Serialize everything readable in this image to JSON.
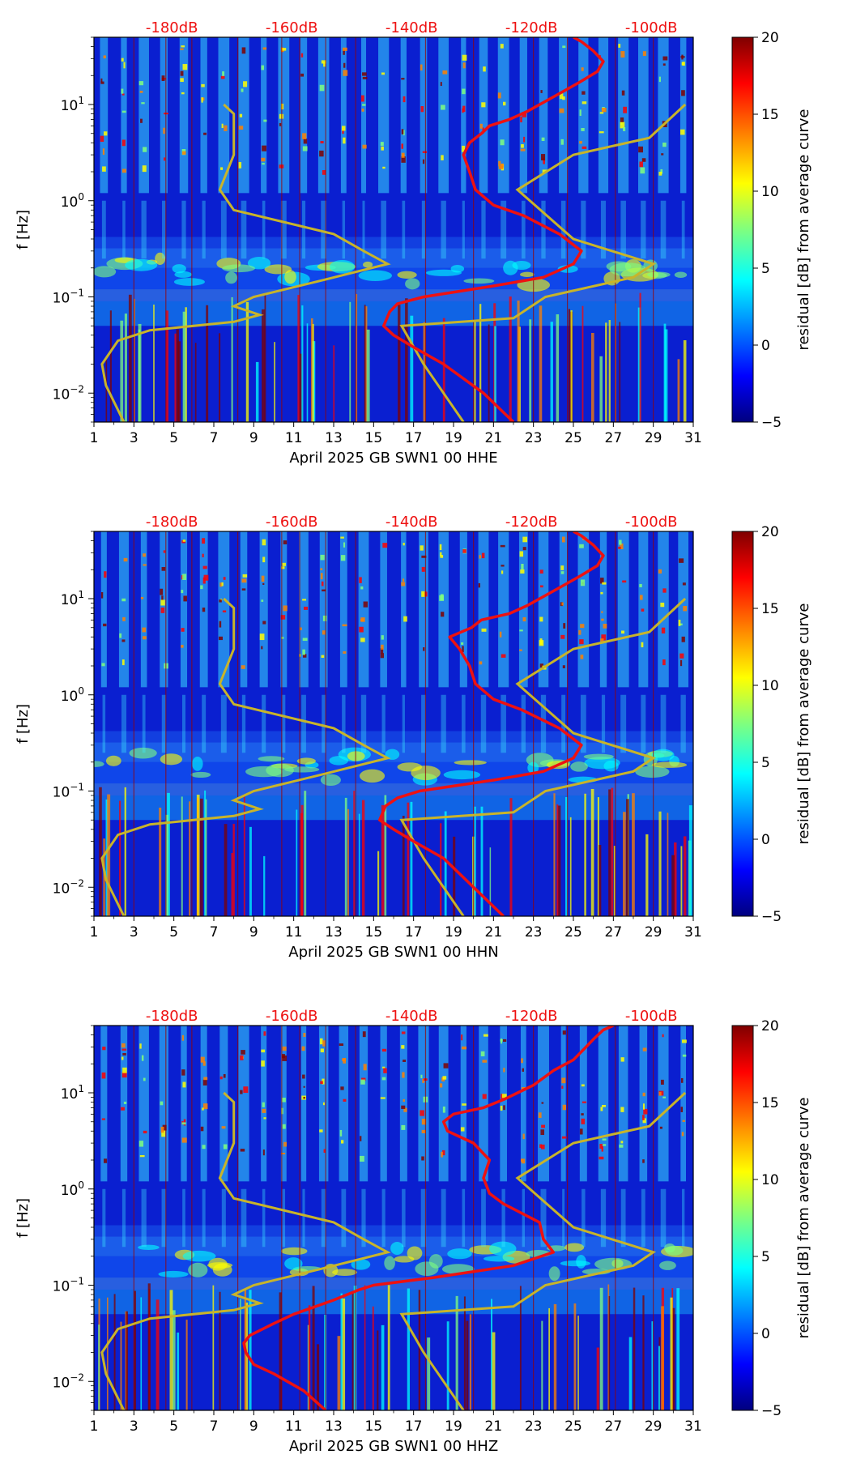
{
  "colors": {
    "red_curve": "#ee1111",
    "noise_model": "#c8b42a",
    "db_label": "#ee1111",
    "stripe": "#990000"
  },
  "shared": {
    "ylabel": "f [Hz]",
    "colorbar_label": "residual [dB] from average curve",
    "colorbar_ticks": [
      "20",
      "15",
      "10",
      "5",
      "0",
      "−5"
    ],
    "colorbar_range": [
      -5,
      20
    ],
    "colormap": "jet",
    "x_ticks": [
      "1",
      "3",
      "5",
      "7",
      "9",
      "11",
      "13",
      "15",
      "17",
      "19",
      "21",
      "23",
      "25",
      "27",
      "29",
      "31"
    ],
    "x_range": [
      1,
      31
    ],
    "y_range_hz": [
      0.005,
      50
    ],
    "y_ticks": [
      {
        "base": "10",
        "exp": "1"
      },
      {
        "base": "10",
        "exp": "0"
      },
      {
        "base": "10",
        "exp": "−1"
      },
      {
        "base": "10",
        "exp": "−2"
      }
    ],
    "db_top_axis": [
      "-180dB",
      "-160dB",
      "-140dB",
      "-120dB",
      "-100dB"
    ]
  },
  "chart_data": [
    {
      "type": "heatmap",
      "title": "",
      "xlabel": "April 2025 GB SWN1 00 HHE",
      "ylabel": "f [Hz]",
      "colorbar_label": "residual [dB] from average curve",
      "x_unit": "day of month",
      "y_unit": "Hz (log)",
      "red_curve": [
        [
          0.005,
          22
        ],
        [
          0.01,
          20.5
        ],
        [
          0.02,
          18.5
        ],
        [
          0.03,
          17
        ],
        [
          0.04,
          16
        ],
        [
          0.05,
          15.5
        ],
        [
          0.07,
          15.8
        ],
        [
          0.085,
          16.2
        ],
        [
          0.1,
          17.5
        ],
        [
          0.13,
          21
        ],
        [
          0.16,
          23.5
        ],
        [
          0.22,
          25
        ],
        [
          0.3,
          25.4
        ],
        [
          0.45,
          24.3
        ],
        [
          0.7,
          22.5
        ],
        [
          0.9,
          21
        ],
        [
          1.3,
          20.1
        ],
        [
          2,
          19.8
        ],
        [
          3,
          19.5
        ],
        [
          4,
          19.8
        ],
        [
          5,
          20.4
        ],
        [
          6,
          20.8
        ],
        [
          7,
          21.8
        ],
        [
          8.5,
          22.7
        ],
        [
          12,
          24
        ],
        [
          17,
          25.3
        ],
        [
          22,
          26.2
        ],
        [
          28,
          26.5
        ],
        [
          36,
          26
        ],
        [
          45,
          25.4
        ],
        [
          50,
          25
        ]
      ],
      "noise_model": [
        [
          0.005,
          2.5
        ],
        [
          0.012,
          1.6
        ],
        [
          0.02,
          1.4
        ],
        [
          0.035,
          2.2
        ],
        [
          0.045,
          3.8
        ],
        [
          0.055,
          8
        ],
        [
          0.065,
          9.3
        ],
        [
          0.08,
          8
        ],
        [
          0.1,
          9
        ],
        [
          0.15,
          12.5
        ],
        [
          0.22,
          15.7
        ],
        [
          0.3,
          14.5
        ],
        [
          0.45,
          13
        ],
        [
          0.8,
          8
        ],
        [
          1.3,
          7.3
        ],
        [
          3,
          8
        ],
        [
          8,
          8
        ],
        [
          10,
          7.5
        ],
        "break",
        [
          0.005,
          19.5
        ],
        [
          0.01,
          18.5
        ],
        [
          0.02,
          17.5
        ],
        [
          0.05,
          16.4
        ],
        [
          0.06,
          22
        ],
        [
          0.1,
          23.6
        ],
        [
          0.16,
          28
        ],
        [
          0.22,
          29
        ],
        [
          0.4,
          25
        ],
        [
          1.3,
          22.2
        ],
        [
          3,
          25
        ],
        [
          4.5,
          28.8
        ],
        [
          10,
          30.6
        ]
      ]
    },
    {
      "type": "heatmap",
      "title": "",
      "xlabel": "April 2025 GB SWN1 00 HHN",
      "ylabel": "f [Hz]",
      "colorbar_label": "residual [dB] from average curve",
      "x_unit": "day of month",
      "y_unit": "Hz (log)",
      "red_curve": [
        [
          0.005,
          21.5
        ],
        [
          0.01,
          20
        ],
        [
          0.02,
          18.5
        ],
        [
          0.03,
          17
        ],
        [
          0.04,
          16
        ],
        [
          0.05,
          15.3
        ],
        [
          0.07,
          15.6
        ],
        [
          0.085,
          16.2
        ],
        [
          0.1,
          17.3
        ],
        [
          0.13,
          21
        ],
        [
          0.16,
          23.5
        ],
        [
          0.22,
          25
        ],
        [
          0.3,
          25.4
        ],
        [
          0.45,
          24.3
        ],
        [
          0.7,
          22.4
        ],
        [
          0.9,
          21
        ],
        [
          1.3,
          20.1
        ],
        [
          2,
          19.8
        ],
        [
          3,
          19.3
        ],
        [
          4,
          18.8
        ],
        [
          5,
          19.9
        ],
        [
          6,
          20.4
        ],
        [
          7,
          21.8
        ],
        [
          8.5,
          22.7
        ],
        [
          12,
          24
        ],
        [
          17,
          25.3
        ],
        [
          22,
          26.2
        ],
        [
          28,
          26.5
        ],
        [
          36,
          26
        ],
        [
          45,
          25.4
        ],
        [
          50,
          25
        ]
      ],
      "noise_model": [
        [
          0.005,
          2.5
        ],
        [
          0.012,
          1.6
        ],
        [
          0.02,
          1.4
        ],
        [
          0.035,
          2.2
        ],
        [
          0.045,
          3.8
        ],
        [
          0.055,
          8
        ],
        [
          0.065,
          9.3
        ],
        [
          0.08,
          8
        ],
        [
          0.1,
          9
        ],
        [
          0.15,
          12.5
        ],
        [
          0.22,
          15.7
        ],
        [
          0.3,
          14.5
        ],
        [
          0.45,
          13
        ],
        [
          0.8,
          8
        ],
        [
          1.3,
          7.3
        ],
        [
          3,
          8
        ],
        [
          8,
          8
        ],
        [
          10,
          7.5
        ],
        "break",
        [
          0.005,
          19.5
        ],
        [
          0.01,
          18.5
        ],
        [
          0.02,
          17.5
        ],
        [
          0.05,
          16.4
        ],
        [
          0.06,
          22
        ],
        [
          0.1,
          23.6
        ],
        [
          0.16,
          28
        ],
        [
          0.22,
          29
        ],
        [
          0.4,
          25
        ],
        [
          1.3,
          22.2
        ],
        [
          3,
          25
        ],
        [
          4.5,
          28.8
        ],
        [
          10,
          30.6
        ]
      ]
    },
    {
      "type": "heatmap",
      "title": "",
      "xlabel": "April 2025 GB SWN1 00 HHZ",
      "ylabel": "f [Hz]",
      "colorbar_label": "residual [dB] from average curve",
      "x_unit": "day of month",
      "y_unit": "Hz (log)",
      "red_curve": [
        [
          0.005,
          12.6
        ],
        [
          0.008,
          11.5
        ],
        [
          0.012,
          10
        ],
        [
          0.015,
          9
        ],
        [
          0.02,
          8.6
        ],
        [
          0.025,
          8.5
        ],
        [
          0.03,
          8.8
        ],
        [
          0.04,
          10
        ],
        [
          0.05,
          11
        ],
        [
          0.07,
          13
        ],
        [
          0.09,
          14.3
        ],
        [
          0.1,
          15
        ],
        [
          0.12,
          18
        ],
        [
          0.16,
          22
        ],
        [
          0.22,
          24
        ],
        [
          0.3,
          23.5
        ],
        [
          0.45,
          23.3
        ],
        [
          0.7,
          21.5
        ],
        [
          0.9,
          20.8
        ],
        [
          1.3,
          20.5
        ],
        [
          2,
          20.8
        ],
        [
          3,
          20
        ],
        [
          4,
          18.7
        ],
        [
          5,
          18.5
        ],
        [
          6,
          19
        ],
        [
          7,
          20.5
        ],
        [
          8.5,
          21.5
        ],
        [
          12,
          23
        ],
        [
          17,
          24
        ],
        [
          22,
          25
        ],
        [
          28,
          25.5
        ],
        [
          36,
          26
        ],
        [
          45,
          26.5
        ],
        [
          50,
          27
        ]
      ],
      "noise_model": [
        [
          0.005,
          2.5
        ],
        [
          0.012,
          1.6
        ],
        [
          0.02,
          1.4
        ],
        [
          0.035,
          2.2
        ],
        [
          0.045,
          3.8
        ],
        [
          0.055,
          8
        ],
        [
          0.065,
          9.3
        ],
        [
          0.08,
          8
        ],
        [
          0.1,
          9
        ],
        [
          0.15,
          12.5
        ],
        [
          0.22,
          15.7
        ],
        [
          0.3,
          14.5
        ],
        [
          0.45,
          13
        ],
        [
          0.8,
          8
        ],
        [
          1.3,
          7.3
        ],
        [
          3,
          8
        ],
        [
          8,
          8
        ],
        [
          10,
          7.5
        ],
        "break",
        [
          0.005,
          19.5
        ],
        [
          0.01,
          18.5
        ],
        [
          0.02,
          17.5
        ],
        [
          0.05,
          16.4
        ],
        [
          0.06,
          22
        ],
        [
          0.1,
          23.6
        ],
        [
          0.16,
          28
        ],
        [
          0.22,
          29
        ],
        [
          0.4,
          25
        ],
        [
          1.3,
          22.2
        ],
        [
          3,
          25
        ],
        [
          4.5,
          28.8
        ],
        [
          10,
          30.6
        ]
      ]
    }
  ]
}
